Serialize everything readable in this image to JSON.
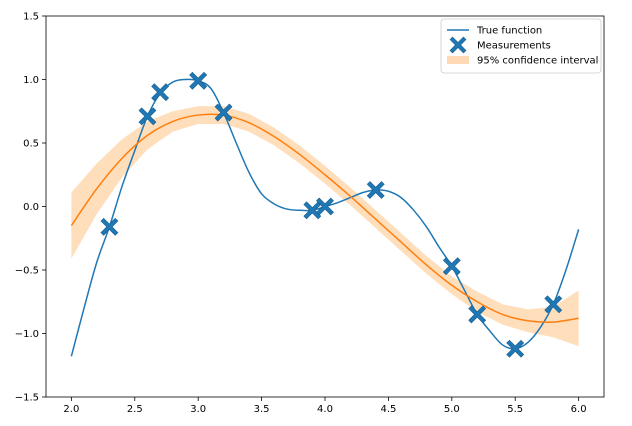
{
  "chart_data": {
    "type": "line",
    "title": "",
    "xlabel": "",
    "ylabel": "",
    "xlim": [
      1.8,
      6.2
    ],
    "ylim": [
      -1.5,
      1.5
    ],
    "xticks": [
      2.0,
      2.5,
      3.0,
      3.5,
      4.0,
      4.5,
      5.0,
      5.5,
      6.0
    ],
    "xtick_labels": [
      "2.0",
      "2.5",
      "3.0",
      "3.5",
      "4.0",
      "4.5",
      "5.0",
      "5.5",
      "6.0"
    ],
    "yticks": [
      -1.5,
      -1.0,
      -0.5,
      0.0,
      0.5,
      1.0,
      1.5
    ],
    "ytick_labels": [
      "−1.5",
      "−1.0",
      "−0.5",
      "0.0",
      "0.5",
      "1.0",
      "1.5"
    ],
    "grid": false,
    "legend_position": "top-right",
    "series": [
      {
        "name": "True function",
        "kind": "line",
        "color": "#1f77b4",
        "points": [
          [
            2.0,
            -1.18
          ],
          [
            2.1,
            -0.8
          ],
          [
            2.2,
            -0.44
          ],
          [
            2.3,
            -0.16
          ],
          [
            2.4,
            0.16
          ],
          [
            2.5,
            0.44
          ],
          [
            2.6,
            0.71
          ],
          [
            2.7,
            0.89
          ],
          [
            2.8,
            0.98
          ],
          [
            2.9,
            1.0
          ],
          [
            3.0,
            0.99
          ],
          [
            3.1,
            0.93
          ],
          [
            3.2,
            0.74
          ],
          [
            3.3,
            0.5
          ],
          [
            3.4,
            0.27
          ],
          [
            3.5,
            0.1
          ],
          [
            3.6,
            0.02
          ],
          [
            3.7,
            -0.02
          ],
          [
            3.8,
            -0.03
          ],
          [
            3.9,
            -0.03
          ],
          [
            4.0,
            0.0
          ],
          [
            4.1,
            0.03
          ],
          [
            4.2,
            0.07
          ],
          [
            4.3,
            0.11
          ],
          [
            4.4,
            0.13
          ],
          [
            4.5,
            0.12
          ],
          [
            4.6,
            0.07
          ],
          [
            4.7,
            -0.03
          ],
          [
            4.8,
            -0.16
          ],
          [
            4.9,
            -0.32
          ],
          [
            5.0,
            -0.47
          ],
          [
            5.1,
            -0.66
          ],
          [
            5.2,
            -0.85
          ],
          [
            5.3,
            -0.98
          ],
          [
            5.4,
            -1.09
          ],
          [
            5.5,
            -1.12
          ],
          [
            5.6,
            -1.07
          ],
          [
            5.7,
            -0.95
          ],
          [
            5.8,
            -0.77
          ],
          [
            5.9,
            -0.5
          ],
          [
            6.0,
            -0.18
          ]
        ]
      },
      {
        "name": "Measurements",
        "kind": "scatter",
        "marker": "X",
        "color": "#1f77b4",
        "points": [
          [
            2.3,
            -0.16
          ],
          [
            2.6,
            0.71
          ],
          [
            2.7,
            0.9
          ],
          [
            3.0,
            0.99
          ],
          [
            3.2,
            0.74
          ],
          [
            3.9,
            -0.03
          ],
          [
            4.0,
            0.0
          ],
          [
            4.4,
            0.13
          ],
          [
            5.0,
            -0.47
          ],
          [
            5.2,
            -0.85
          ],
          [
            5.5,
            -1.12
          ],
          [
            5.8,
            -0.77
          ]
        ]
      },
      {
        "name": "",
        "kind": "line",
        "color": "#ff7f0e",
        "points": [
          [
            2.0,
            -0.15
          ],
          [
            2.2,
            0.14
          ],
          [
            2.4,
            0.38
          ],
          [
            2.6,
            0.56
          ],
          [
            2.8,
            0.67
          ],
          [
            3.0,
            0.72
          ],
          [
            3.2,
            0.72
          ],
          [
            3.4,
            0.66
          ],
          [
            3.6,
            0.55
          ],
          [
            3.8,
            0.41
          ],
          [
            4.0,
            0.25
          ],
          [
            4.2,
            0.08
          ],
          [
            4.4,
            -0.1
          ],
          [
            4.6,
            -0.28
          ],
          [
            4.8,
            -0.46
          ],
          [
            5.0,
            -0.62
          ],
          [
            5.2,
            -0.75
          ],
          [
            5.4,
            -0.85
          ],
          [
            5.6,
            -0.9
          ],
          [
            5.8,
            -0.91
          ],
          [
            6.0,
            -0.88
          ]
        ]
      },
      {
        "name": "95% confidence interval",
        "kind": "band",
        "color": "#ffdab5",
        "lower": [
          [
            2.0,
            -0.41
          ],
          [
            2.2,
            -0.06
          ],
          [
            2.4,
            0.23
          ],
          [
            2.6,
            0.45
          ],
          [
            2.8,
            0.59
          ],
          [
            3.0,
            0.65
          ],
          [
            3.2,
            0.65
          ],
          [
            3.4,
            0.59
          ],
          [
            3.6,
            0.48
          ],
          [
            3.8,
            0.34
          ],
          [
            4.0,
            0.18
          ],
          [
            4.2,
            0.01
          ],
          [
            4.4,
            -0.17
          ],
          [
            4.6,
            -0.35
          ],
          [
            4.8,
            -0.53
          ],
          [
            5.0,
            -0.69
          ],
          [
            5.2,
            -0.83
          ],
          [
            5.4,
            -0.93
          ],
          [
            5.6,
            -0.99
          ],
          [
            5.8,
            -1.03
          ],
          [
            6.0,
            -1.1
          ]
        ],
        "upper": [
          [
            2.0,
            0.11
          ],
          [
            2.2,
            0.34
          ],
          [
            2.4,
            0.53
          ],
          [
            2.6,
            0.67
          ],
          [
            2.8,
            0.75
          ],
          [
            3.0,
            0.79
          ],
          [
            3.2,
            0.79
          ],
          [
            3.4,
            0.73
          ],
          [
            3.6,
            0.62
          ],
          [
            3.8,
            0.48
          ],
          [
            4.0,
            0.32
          ],
          [
            4.2,
            0.15
          ],
          [
            4.4,
            -0.03
          ],
          [
            4.6,
            -0.21
          ],
          [
            4.8,
            -0.39
          ],
          [
            5.0,
            -0.55
          ],
          [
            5.2,
            -0.67
          ],
          [
            5.4,
            -0.77
          ],
          [
            5.6,
            -0.81
          ],
          [
            5.8,
            -0.79
          ],
          [
            6.0,
            -0.66
          ]
        ]
      }
    ],
    "legend": [
      {
        "label": "True function",
        "kind": "line",
        "color": "#1f77b4"
      },
      {
        "label": "Measurements",
        "kind": "marker",
        "color": "#1f77b4"
      },
      {
        "label": "95% confidence interval",
        "kind": "patch",
        "color": "#ffdab5"
      }
    ]
  }
}
